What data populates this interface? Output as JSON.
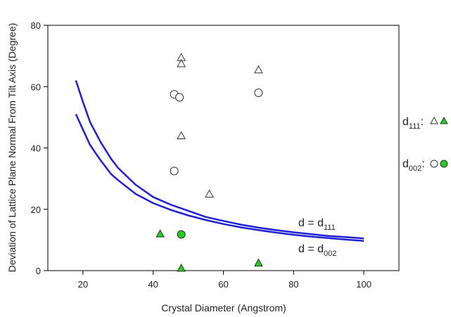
{
  "chart_data": {
    "type": "scatter",
    "xlabel": "Crystal Diameter (Angstrom)",
    "ylabel": "Deviation of Lattice Plane Normal From Tilt Axis (Degree)",
    "xlim": [
      10,
      110
    ],
    "ylim": [
      0,
      80
    ],
    "xticks": [
      20,
      40,
      60,
      80,
      100
    ],
    "yticks": [
      0,
      20,
      40,
      60,
      80
    ],
    "grid": false,
    "colors": {
      "axis": "#000000",
      "curve": "#1f1fd6",
      "filled_marker": "#22cc22",
      "open_marker_stroke": "#333333"
    },
    "series": [
      {
        "name": "d111 open",
        "marker": "triangle-open",
        "points": [
          [
            48,
            69.5
          ],
          [
            48,
            67.5
          ],
          [
            48,
            44
          ],
          [
            56,
            25
          ],
          [
            70,
            65.5
          ]
        ]
      },
      {
        "name": "d002 open",
        "marker": "circle-open",
        "points": [
          [
            46,
            57.5
          ],
          [
            47.5,
            56.5
          ],
          [
            46,
            32.5
          ],
          [
            70,
            58
          ]
        ]
      },
      {
        "name": "d111 filled",
        "marker": "triangle-filled",
        "points": [
          [
            42,
            12
          ],
          [
            48,
            0.8
          ],
          [
            70,
            2.5
          ]
        ]
      },
      {
        "name": "d002 filled",
        "marker": "circle-filled",
        "points": [
          [
            48,
            11.8
          ]
        ]
      }
    ],
    "curves": [
      {
        "name": "d111 curve",
        "x": [
          18,
          20,
          22,
          25,
          28,
          30,
          35,
          40,
          45,
          50,
          55,
          60,
          65,
          70,
          75,
          80,
          85,
          90,
          95,
          100
        ],
        "y": [
          62,
          55,
          48.5,
          42,
          36.5,
          33.5,
          28,
          24,
          21.5,
          19.5,
          17.5,
          16.2,
          15,
          14,
          13.2,
          12.5,
          11.9,
          11.3,
          10.9,
          10.5
        ]
      },
      {
        "name": "d002 curve",
        "x": [
          18,
          20,
          22,
          25,
          28,
          30,
          35,
          40,
          45,
          50,
          55,
          60,
          65,
          70,
          75,
          80,
          85,
          90,
          95,
          100
        ],
        "y": [
          51,
          46,
          41,
          36,
          31.5,
          29.5,
          25,
          22,
          19.8,
          18,
          16.5,
          15.2,
          14.1,
          13.2,
          12.4,
          11.7,
          11.1,
          10.6,
          10.1,
          9.7
        ]
      }
    ],
    "annotations": {
      "curve_label_1_main": "d = d",
      "curve_label_1_sub": "111",
      "curve_label_2_main": "d = d",
      "curve_label_2_sub": "002"
    },
    "legend": {
      "position": "right",
      "row1_main": "d",
      "row1_sub": "111",
      "row1_colon": ":",
      "row2_main": "d",
      "row2_sub": "002",
      "row2_colon": ":"
    }
  }
}
